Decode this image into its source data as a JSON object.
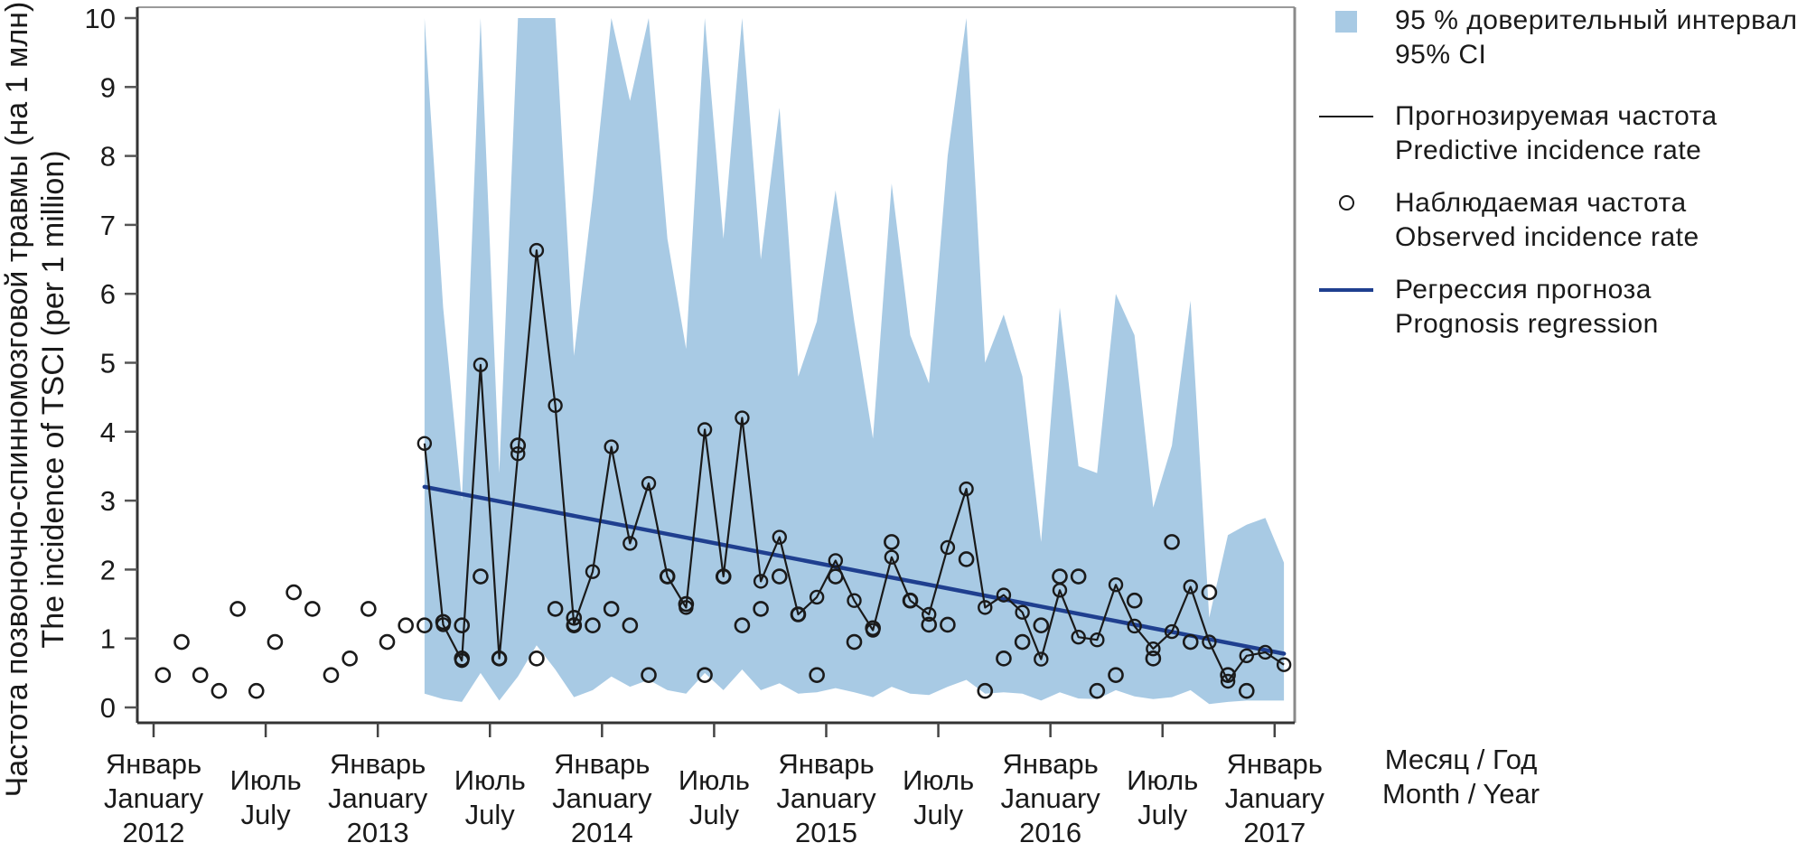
{
  "chart_data": {
    "type": "line",
    "title": "",
    "ylabel": [
      "Частота позвоночно-спинномозговой травмы (на 1 млн)",
      "The incidence of TSCI (per 1 million)"
    ],
    "xlabel": [
      "Месяц / Год",
      "Month / Year"
    ],
    "ylim": [
      0,
      10
    ],
    "yticks": [
      0,
      1,
      2,
      3,
      4,
      5,
      6,
      7,
      8,
      9,
      10
    ],
    "ytick_labels": [
      "0",
      "1",
      "2",
      "3",
      "4",
      "5",
      "6",
      "7",
      "8",
      "9",
      "10"
    ],
    "x_start": "2012-01",
    "x_end": "2017-01",
    "xticks": [
      {
        "month_index": 0,
        "lines": [
          "Январь",
          "January",
          "2012"
        ]
      },
      {
        "month_index": 6,
        "lines": [
          "Июль",
          "July"
        ]
      },
      {
        "month_index": 12,
        "lines": [
          "Январь",
          "January",
          "2013"
        ]
      },
      {
        "month_index": 18,
        "lines": [
          "Июль",
          "July"
        ]
      },
      {
        "month_index": 24,
        "lines": [
          "Январь",
          "January",
          "2014"
        ]
      },
      {
        "month_index": 30,
        "lines": [
          "Июль",
          "July"
        ]
      },
      {
        "month_index": 36,
        "lines": [
          "Январь",
          "January",
          "2015"
        ]
      },
      {
        "month_index": 42,
        "lines": [
          "Июль",
          "July"
        ]
      },
      {
        "month_index": 48,
        "lines": [
          "Январь",
          "January",
          "2016"
        ]
      },
      {
        "month_index": 54,
        "lines": [
          "Июль",
          "July"
        ]
      },
      {
        "month_index": 60,
        "lines": [
          "Январь",
          "January",
          "2017"
        ]
      }
    ],
    "grid": false,
    "legend_position": "right",
    "legend": [
      {
        "key": "ci",
        "lines": [
          "95 % доверительный интервал",
          "95% CI"
        ],
        "color": "#a8cae4"
      },
      {
        "key": "predicted",
        "lines": [
          "Прогнозируемая частота",
          "Predictive incidence rate"
        ],
        "color": "#1a1a1a"
      },
      {
        "key": "observed",
        "lines": [
          "Наблюдаемая частота",
          "Observed incidence rate"
        ],
        "color": "#1a1a1a"
      },
      {
        "key": "regression",
        "lines": [
          "Регрессия прогноза",
          "Prognosis regression"
        ],
        "color": "#1f3f8f"
      }
    ],
    "series": [
      {
        "name": "Наблюдаемая частота / Observed incidence rate",
        "kind": "scatter",
        "points": [
          [
            0.5,
            0.47
          ],
          [
            1.5,
            0.95
          ],
          [
            2.5,
            0.47
          ],
          [
            3.5,
            0.24
          ],
          [
            4.5,
            1.43
          ],
          [
            5.5,
            0.24
          ],
          [
            6.5,
            0.95
          ],
          [
            7.5,
            1.67
          ],
          [
            8.5,
            1.43
          ],
          [
            9.5,
            0.47
          ],
          [
            10.5,
            0.71
          ],
          [
            11.5,
            1.43
          ],
          [
            12.5,
            0.95
          ],
          [
            13.5,
            1.19
          ],
          [
            14.5,
            1.19
          ],
          [
            15.5,
            1.24
          ],
          [
            16.5,
            1.19
          ],
          [
            16.5,
            0.71
          ],
          [
            17.5,
            1.9
          ],
          [
            18.5,
            0.71
          ],
          [
            19.5,
            3.8
          ],
          [
            20.5,
            0.71
          ],
          [
            21.5,
            1.43
          ],
          [
            22.5,
            1.19
          ],
          [
            22.5,
            1.3
          ],
          [
            23.5,
            1.19
          ],
          [
            24.5,
            1.43
          ],
          [
            25.5,
            1.19
          ],
          [
            26.5,
            0.47
          ],
          [
            27.5,
            1.9
          ],
          [
            28.5,
            1.5
          ],
          [
            29.5,
            0.47
          ],
          [
            30.5,
            1.9
          ],
          [
            31.5,
            1.19
          ],
          [
            32.5,
            1.43
          ],
          [
            33.5,
            1.9
          ],
          [
            34.5,
            1.35
          ],
          [
            35.5,
            0.47
          ],
          [
            36.5,
            1.9
          ],
          [
            37.5,
            0.95
          ],
          [
            38.5,
            1.15
          ],
          [
            39.5,
            2.4
          ],
          [
            40.5,
            1.55
          ],
          [
            41.5,
            1.2
          ],
          [
            42.5,
            1.2
          ],
          [
            43.5,
            2.15
          ],
          [
            44.5,
            0.24
          ],
          [
            45.5,
            0.71
          ],
          [
            46.5,
            0.95
          ],
          [
            47.5,
            1.19
          ],
          [
            48.5,
            1.9
          ],
          [
            49.5,
            1.9
          ],
          [
            50.5,
            0.24
          ],
          [
            51.5,
            0.47
          ],
          [
            52.5,
            1.55
          ],
          [
            53.5,
            0.71
          ],
          [
            54.5,
            2.4
          ],
          [
            55.5,
            0.95
          ],
          [
            56.5,
            1.67
          ],
          [
            57.5,
            0.47
          ],
          [
            58.5,
            0.24
          ]
        ]
      },
      {
        "name": "Прогнозируемая частота / Predictive incidence rate",
        "kind": "line",
        "points": [
          [
            14.5,
            3.83
          ],
          [
            15.5,
            1.2
          ],
          [
            16.5,
            0.68
          ],
          [
            17.5,
            4.97
          ],
          [
            18.5,
            0.71
          ],
          [
            19.5,
            3.68
          ],
          [
            20.5,
            6.63
          ],
          [
            21.5,
            4.38
          ],
          [
            22.5,
            1.2
          ],
          [
            23.5,
            1.97
          ],
          [
            24.5,
            3.78
          ],
          [
            25.5,
            2.38
          ],
          [
            26.5,
            3.25
          ],
          [
            27.5,
            1.9
          ],
          [
            28.5,
            1.45
          ],
          [
            29.5,
            4.03
          ],
          [
            30.5,
            1.9
          ],
          [
            31.5,
            4.2
          ],
          [
            32.5,
            1.83
          ],
          [
            33.5,
            2.47
          ],
          [
            34.5,
            1.35
          ],
          [
            35.5,
            1.6
          ],
          [
            36.5,
            2.13
          ],
          [
            37.5,
            1.55
          ],
          [
            38.5,
            1.12
          ],
          [
            39.5,
            2.18
          ],
          [
            40.5,
            1.55
          ],
          [
            41.5,
            1.35
          ],
          [
            42.5,
            2.32
          ],
          [
            43.5,
            3.17
          ],
          [
            44.5,
            1.45
          ],
          [
            45.5,
            1.63
          ],
          [
            46.5,
            1.38
          ],
          [
            47.5,
            0.7
          ],
          [
            48.5,
            1.7
          ],
          [
            49.5,
            1.02
          ],
          [
            50.5,
            0.98
          ],
          [
            51.5,
            1.78
          ],
          [
            52.5,
            1.18
          ],
          [
            53.5,
            0.85
          ],
          [
            54.5,
            1.1
          ],
          [
            55.5,
            1.75
          ],
          [
            56.5,
            0.95
          ],
          [
            57.5,
            0.38
          ],
          [
            58.5,
            0.75
          ],
          [
            59.5,
            0.8
          ],
          [
            60.5,
            0.62
          ]
        ]
      },
      {
        "name": "Регрессия прогноза / Prognosis regression",
        "kind": "line",
        "points": [
          [
            14.5,
            3.2
          ],
          [
            60.5,
            0.78
          ]
        ]
      },
      {
        "name": "95 % доверительный интервал / 95% CI",
        "kind": "band",
        "upper": [
          [
            14.5,
            10
          ],
          [
            15.5,
            5.8
          ],
          [
            16.5,
            3.0
          ],
          [
            17.5,
            10
          ],
          [
            18.5,
            3.4
          ],
          [
            19.5,
            10
          ],
          [
            20.5,
            10
          ],
          [
            21.5,
            10
          ],
          [
            22.5,
            5.1
          ],
          [
            23.5,
            7.4
          ],
          [
            24.5,
            10
          ],
          [
            25.5,
            8.8
          ],
          [
            26.5,
            10
          ],
          [
            27.5,
            6.8
          ],
          [
            28.5,
            5.2
          ],
          [
            29.5,
            10
          ],
          [
            30.5,
            6.8
          ],
          [
            31.5,
            10
          ],
          [
            32.5,
            6.5
          ],
          [
            33.5,
            8.7
          ],
          [
            34.5,
            4.8
          ],
          [
            35.5,
            5.6
          ],
          [
            36.5,
            7.5
          ],
          [
            37.5,
            5.6
          ],
          [
            38.5,
            3.9
          ],
          [
            39.5,
            7.6
          ],
          [
            40.5,
            5.4
          ],
          [
            41.5,
            4.7
          ],
          [
            42.5,
            8.0
          ],
          [
            43.5,
            10
          ],
          [
            44.5,
            5.0
          ],
          [
            45.5,
            5.7
          ],
          [
            46.5,
            4.8
          ],
          [
            47.5,
            2.4
          ],
          [
            48.5,
            5.8
          ],
          [
            49.5,
            3.5
          ],
          [
            50.5,
            3.4
          ],
          [
            51.5,
            6.0
          ],
          [
            52.5,
            5.4
          ],
          [
            53.5,
            2.9
          ],
          [
            54.5,
            3.8
          ],
          [
            55.5,
            5.9
          ],
          [
            56.5,
            1.3
          ],
          [
            57.5,
            2.5
          ],
          [
            58.5,
            2.65
          ],
          [
            59.5,
            2.75
          ],
          [
            60.5,
            2.1
          ]
        ],
        "lower": [
          [
            14.5,
            0.2
          ],
          [
            15.5,
            0.12
          ],
          [
            16.5,
            0.08
          ],
          [
            17.5,
            0.5
          ],
          [
            18.5,
            0.1
          ],
          [
            19.5,
            0.45
          ],
          [
            20.5,
            0.9
          ],
          [
            21.5,
            0.55
          ],
          [
            22.5,
            0.15
          ],
          [
            23.5,
            0.25
          ],
          [
            24.5,
            0.45
          ],
          [
            25.5,
            0.3
          ],
          [
            26.5,
            0.4
          ],
          [
            27.5,
            0.25
          ],
          [
            28.5,
            0.2
          ],
          [
            29.5,
            0.5
          ],
          [
            30.5,
            0.25
          ],
          [
            31.5,
            0.55
          ],
          [
            32.5,
            0.25
          ],
          [
            33.5,
            0.35
          ],
          [
            34.5,
            0.2
          ],
          [
            35.5,
            0.22
          ],
          [
            36.5,
            0.28
          ],
          [
            37.5,
            0.22
          ],
          [
            38.5,
            0.15
          ],
          [
            39.5,
            0.3
          ],
          [
            40.5,
            0.2
          ],
          [
            41.5,
            0.18
          ],
          [
            42.5,
            0.3
          ],
          [
            43.5,
            0.4
          ],
          [
            44.5,
            0.2
          ],
          [
            45.5,
            0.22
          ],
          [
            46.5,
            0.2
          ],
          [
            47.5,
            0.1
          ],
          [
            48.5,
            0.22
          ],
          [
            49.5,
            0.13
          ],
          [
            50.5,
            0.12
          ],
          [
            51.5,
            0.25
          ],
          [
            52.5,
            0.16
          ],
          [
            53.5,
            0.12
          ],
          [
            54.5,
            0.15
          ],
          [
            55.5,
            0.25
          ],
          [
            56.5,
            0.05
          ],
          [
            57.5,
            0.08
          ],
          [
            58.5,
            0.1
          ],
          [
            59.5,
            0.1
          ],
          [
            60.5,
            0.1
          ]
        ]
      }
    ]
  },
  "axis_title": {
    "line1": "Месяц / Год",
    "line2": "Month / Year"
  },
  "colors": {
    "ci": "#a8cae4",
    "predicted": "#1a1a1a",
    "observed": "#1a1a1a",
    "regression": "#1f3f8f",
    "axis": "#333333"
  }
}
